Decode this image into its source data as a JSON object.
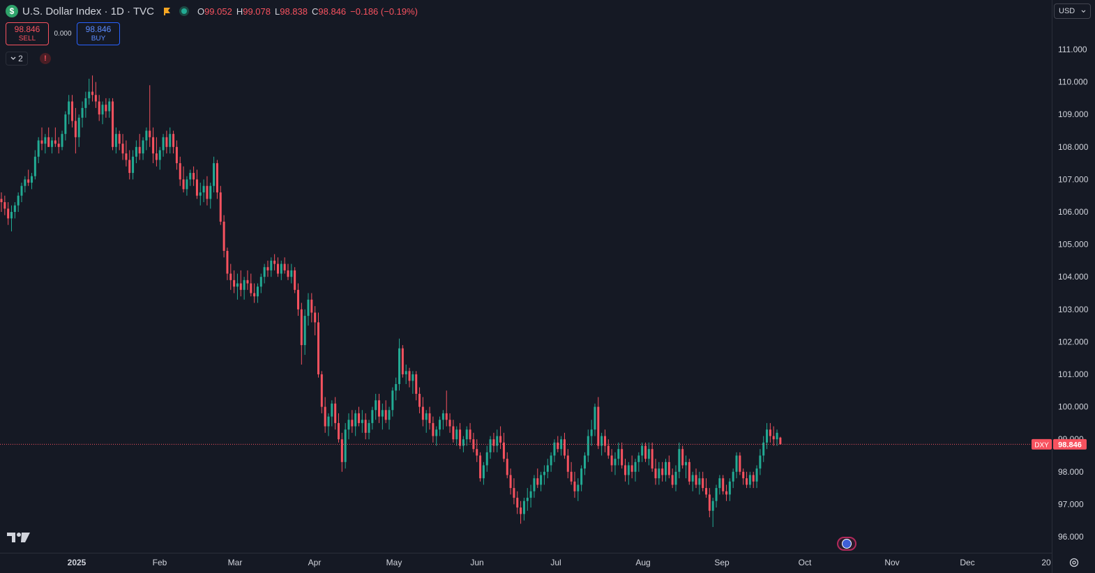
{
  "header": {
    "symbol_icon": "$",
    "title": "U.S. Dollar Index · 1D · TVC",
    "ohlc": [
      {
        "label": "O",
        "value": "99.052"
      },
      {
        "label": "H",
        "value": "99.078"
      },
      {
        "label": "L",
        "value": "98.838"
      },
      {
        "label": "C",
        "value": "98.846"
      }
    ],
    "change": "−0.186 (−0.19%)"
  },
  "trade": {
    "sell_price": "98.846",
    "sell_label": "SELL",
    "spread": "0.000",
    "buy_price": "98.846",
    "buy_label": "BUY"
  },
  "indicators_count": "2",
  "warning_symbol": "!",
  "currency": "USD",
  "price_tag": {
    "symbol": "DXY",
    "price": "98.846"
  },
  "colors": {
    "background": "#151924",
    "up": "#22ab94",
    "down": "#f7525f",
    "grid_text": "#d1d4dc",
    "line": "#f7525f"
  },
  "icons": [
    "dollar-icon",
    "flag-icon",
    "live-dot-icon",
    "chevron-down-icon",
    "warning-icon",
    "tradingview-logo",
    "us-flag-event-icon",
    "settings-icon"
  ],
  "chart_data": {
    "type": "candlestick",
    "title": "U.S. Dollar Index · 1D · TVC",
    "ylim": [
      95.5,
      111.5
    ],
    "y_ticks": [
      "111.000",
      "110.000",
      "109.000",
      "108.000",
      "107.000",
      "106.000",
      "105.000",
      "104.000",
      "103.000",
      "102.000",
      "101.000",
      "100.000",
      "99.000",
      "98.000",
      "97.000",
      "96.000"
    ],
    "x_tick_labels": [
      "2025",
      "Feb",
      "Mar",
      "Apr",
      "May",
      "Jun",
      "Jul",
      "Aug",
      "Sep",
      "Oct",
      "Nov",
      "Dec",
      "20"
    ],
    "last_price": 98.846,
    "ohlc": [
      [
        106.4,
        106.6,
        106.0,
        106.3
      ],
      [
        106.3,
        106.5,
        105.9,
        106.1
      ],
      [
        106.1,
        106.3,
        105.6,
        105.8
      ],
      [
        105.8,
        106.2,
        105.4,
        106.0
      ],
      [
        106.0,
        106.3,
        105.8,
        106.2
      ],
      [
        106.2,
        106.6,
        106.0,
        106.5
      ],
      [
        106.5,
        106.9,
        106.3,
        106.8
      ],
      [
        106.8,
        107.1,
        106.6,
        107.0
      ],
      [
        107.0,
        107.3,
        106.8,
        106.9
      ],
      [
        106.9,
        107.2,
        106.7,
        107.1
      ],
      [
        107.1,
        107.9,
        107.0,
        107.7
      ],
      [
        107.7,
        108.3,
        107.5,
        108.2
      ],
      [
        108.2,
        108.6,
        107.9,
        108.1
      ],
      [
        108.1,
        108.4,
        107.8,
        108.3
      ],
      [
        108.3,
        108.6,
        108.0,
        108.0
      ],
      [
        108.0,
        108.3,
        107.8,
        108.2
      ],
      [
        108.2,
        108.6,
        108.0,
        108.1
      ],
      [
        108.1,
        108.3,
        107.8,
        108.0
      ],
      [
        108.0,
        108.5,
        107.9,
        108.4
      ],
      [
        108.4,
        109.1,
        108.2,
        109.0
      ],
      [
        109.0,
        109.6,
        108.7,
        109.4
      ],
      [
        109.4,
        109.6,
        108.6,
        108.8
      ],
      [
        108.8,
        109.2,
        107.8,
        108.3
      ],
      [
        108.3,
        109.0,
        108.0,
        108.9
      ],
      [
        108.9,
        109.4,
        108.6,
        109.2
      ],
      [
        109.2,
        109.7,
        108.9,
        109.5
      ],
      [
        109.5,
        110.1,
        109.3,
        109.7
      ],
      [
        109.7,
        110.2,
        109.4,
        109.6
      ],
      [
        109.6,
        110.0,
        109.2,
        109.4
      ],
      [
        109.4,
        109.6,
        108.8,
        109.0
      ],
      [
        109.0,
        109.4,
        108.7,
        109.3
      ],
      [
        109.3,
        109.5,
        108.9,
        109.1
      ],
      [
        109.1,
        109.5,
        108.9,
        109.4
      ],
      [
        109.4,
        109.5,
        107.9,
        108.0
      ],
      [
        108.0,
        108.6,
        107.8,
        108.4
      ],
      [
        108.4,
        108.5,
        107.9,
        108.1
      ],
      [
        108.1,
        108.4,
        107.6,
        107.8
      ],
      [
        107.8,
        108.2,
        107.4,
        107.6
      ],
      [
        107.6,
        107.9,
        107.0,
        107.2
      ],
      [
        107.2,
        107.9,
        107.0,
        107.7
      ],
      [
        107.7,
        108.2,
        107.5,
        108.0
      ],
      [
        108.0,
        108.4,
        107.6,
        107.8
      ],
      [
        107.8,
        108.3,
        107.6,
        108.2
      ],
      [
        108.2,
        108.6,
        107.9,
        108.5
      ],
      [
        108.5,
        109.9,
        108.0,
        108.3
      ],
      [
        108.3,
        108.6,
        107.5,
        107.8
      ],
      [
        107.8,
        108.3,
        107.4,
        107.6
      ],
      [
        107.6,
        108.0,
        107.3,
        107.9
      ],
      [
        107.9,
        108.4,
        107.7,
        108.3
      ],
      [
        108.3,
        108.5,
        107.8,
        108.0
      ],
      [
        108.0,
        108.6,
        107.8,
        108.4
      ],
      [
        108.4,
        108.5,
        107.8,
        108.0
      ],
      [
        108.0,
        108.2,
        107.3,
        107.5
      ],
      [
        107.5,
        107.7,
        106.8,
        107.0
      ],
      [
        107.0,
        107.4,
        106.6,
        106.7
      ],
      [
        106.7,
        107.1,
        106.5,
        107.0
      ],
      [
        107.0,
        107.3,
        106.8,
        107.2
      ],
      [
        107.2,
        107.4,
        106.8,
        107.0
      ],
      [
        107.0,
        107.3,
        106.4,
        106.5
      ],
      [
        106.5,
        106.9,
        106.2,
        106.6
      ],
      [
        106.6,
        107.0,
        106.3,
        106.8
      ],
      [
        106.8,
        107.1,
        106.2,
        106.4
      ],
      [
        106.4,
        106.9,
        106.1,
        106.8
      ],
      [
        106.8,
        107.7,
        106.6,
        107.5
      ],
      [
        107.5,
        107.6,
        106.4,
        106.6
      ],
      [
        106.6,
        106.8,
        105.6,
        105.7
      ],
      [
        105.7,
        105.9,
        104.6,
        104.8
      ],
      [
        104.8,
        104.9,
        103.9,
        104.1
      ],
      [
        104.1,
        104.4,
        103.6,
        103.9
      ],
      [
        103.9,
        104.2,
        103.5,
        103.7
      ],
      [
        103.7,
        104.1,
        103.3,
        103.8
      ],
      [
        103.8,
        104.2,
        103.4,
        103.6
      ],
      [
        103.6,
        104.0,
        103.3,
        103.9
      ],
      [
        103.9,
        104.2,
        103.6,
        103.8
      ],
      [
        103.8,
        104.1,
        103.4,
        103.5
      ],
      [
        103.5,
        103.8,
        103.2,
        103.4
      ],
      [
        103.4,
        103.8,
        103.2,
        103.7
      ],
      [
        103.7,
        104.1,
        103.5,
        104.0
      ],
      [
        104.0,
        104.4,
        103.8,
        104.3
      ],
      [
        104.3,
        104.5,
        104.0,
        104.2
      ],
      [
        104.2,
        104.6,
        104.0,
        104.5
      ],
      [
        104.5,
        104.7,
        104.2,
        104.4
      ],
      [
        104.4,
        104.6,
        104.0,
        104.1
      ],
      [
        104.1,
        104.5,
        103.9,
        104.4
      ],
      [
        104.4,
        104.6,
        104.1,
        104.2
      ],
      [
        104.2,
        104.4,
        103.9,
        104.0
      ],
      [
        104.0,
        104.4,
        103.8,
        104.2
      ],
      [
        104.2,
        104.3,
        103.5,
        103.6
      ],
      [
        103.6,
        103.8,
        102.8,
        103.0
      ],
      [
        103.0,
        103.2,
        101.3,
        101.9
      ],
      [
        101.9,
        103.0,
        101.6,
        102.8
      ],
      [
        102.8,
        103.5,
        102.5,
        103.3
      ],
      [
        103.3,
        103.5,
        102.6,
        102.9
      ],
      [
        102.9,
        103.1,
        102.2,
        102.6
      ],
      [
        102.6,
        102.9,
        100.9,
        101.0
      ],
      [
        101.0,
        101.1,
        99.8,
        100.0
      ],
      [
        100.0,
        100.3,
        99.2,
        99.4
      ],
      [
        99.4,
        99.8,
        99.1,
        99.7
      ],
      [
        99.7,
        100.2,
        99.4,
        100.1
      ],
      [
        100.1,
        100.3,
        99.3,
        99.5
      ],
      [
        99.5,
        99.8,
        98.9,
        99.0
      ],
      [
        99.0,
        99.2,
        98.0,
        98.3
      ],
      [
        98.3,
        99.5,
        98.1,
        99.3
      ],
      [
        99.3,
        99.8,
        99.0,
        99.6
      ],
      [
        99.6,
        99.9,
        99.2,
        99.4
      ],
      [
        99.4,
        99.9,
        99.1,
        99.8
      ],
      [
        99.8,
        100.0,
        99.4,
        99.5
      ],
      [
        99.5,
        99.9,
        99.2,
        99.6
      ],
      [
        99.6,
        99.8,
        99.0,
        99.2
      ],
      [
        99.2,
        99.6,
        99.0,
        99.5
      ],
      [
        99.5,
        100.0,
        99.3,
        99.9
      ],
      [
        99.9,
        100.4,
        99.6,
        100.2
      ],
      [
        100.2,
        100.4,
        99.5,
        99.7
      ],
      [
        99.7,
        100.1,
        99.3,
        99.9
      ],
      [
        99.9,
        100.2,
        99.5,
        99.6
      ],
      [
        99.6,
        100.0,
        99.3,
        99.9
      ],
      [
        99.9,
        100.6,
        99.7,
        100.5
      ],
      [
        100.5,
        100.9,
        100.2,
        100.7
      ],
      [
        100.7,
        102.1,
        100.5,
        101.8
      ],
      [
        101.8,
        101.9,
        100.9,
        101.0
      ],
      [
        101.0,
        101.3,
        100.7,
        101.1
      ],
      [
        101.1,
        101.2,
        100.6,
        100.8
      ],
      [
        100.8,
        101.1,
        100.4,
        101.0
      ],
      [
        101.0,
        101.1,
        100.2,
        100.4
      ],
      [
        100.4,
        100.6,
        99.8,
        100.0
      ],
      [
        100.0,
        100.3,
        99.4,
        99.6
      ],
      [
        99.6,
        99.9,
        99.2,
        99.8
      ],
      [
        99.8,
        100.0,
        99.3,
        99.5
      ],
      [
        99.5,
        99.7,
        98.9,
        99.1
      ],
      [
        99.1,
        99.4,
        98.8,
        99.3
      ],
      [
        99.3,
        99.7,
        99.1,
        99.6
      ],
      [
        99.6,
        99.9,
        99.3,
        99.8
      ],
      [
        99.8,
        100.5,
        99.4,
        99.6
      ],
      [
        99.6,
        99.8,
        99.2,
        99.4
      ],
      [
        99.4,
        99.6,
        98.9,
        99.0
      ],
      [
        99.0,
        99.4,
        98.8,
        99.3
      ],
      [
        99.3,
        99.5,
        98.7,
        98.8
      ],
      [
        98.8,
        99.1,
        98.6,
        99.0
      ],
      [
        99.0,
        99.4,
        98.8,
        99.3
      ],
      [
        99.3,
        99.5,
        98.9,
        99.0
      ],
      [
        99.0,
        99.2,
        98.6,
        98.7
      ],
      [
        98.7,
        99.0,
        98.3,
        98.5
      ],
      [
        98.5,
        98.6,
        97.7,
        97.8
      ],
      [
        97.8,
        98.3,
        97.6,
        98.2
      ],
      [
        98.2,
        98.8,
        98.0,
        98.6
      ],
      [
        98.6,
        99.1,
        98.4,
        99.0
      ],
      [
        99.0,
        99.2,
        98.6,
        98.8
      ],
      [
        98.8,
        99.3,
        98.6,
        99.1
      ],
      [
        99.1,
        99.4,
        98.7,
        98.9
      ],
      [
        98.9,
        99.2,
        98.3,
        98.4
      ],
      [
        98.4,
        98.6,
        97.8,
        97.9
      ],
      [
        97.9,
        98.1,
        97.3,
        97.5
      ],
      [
        97.5,
        97.8,
        97.0,
        97.2
      ],
      [
        97.2,
        97.4,
        96.7,
        96.9
      ],
      [
        96.9,
        97.1,
        96.4,
        96.7
      ],
      [
        96.7,
        97.2,
        96.5,
        97.1
      ],
      [
        97.1,
        97.5,
        96.8,
        97.2
      ],
      [
        97.2,
        97.6,
        96.9,
        97.4
      ],
      [
        97.4,
        97.9,
        97.2,
        97.8
      ],
      [
        97.8,
        98.1,
        97.5,
        97.6
      ],
      [
        97.6,
        98.0,
        97.4,
        97.9
      ],
      [
        97.9,
        98.2,
        97.6,
        98.0
      ],
      [
        98.0,
        98.4,
        97.8,
        98.2
      ],
      [
        98.2,
        98.6,
        98.0,
        98.5
      ],
      [
        98.5,
        99.0,
        98.3,
        98.9
      ],
      [
        98.9,
        99.1,
        98.6,
        98.7
      ],
      [
        98.7,
        99.1,
        98.5,
        99.0
      ],
      [
        99.0,
        99.2,
        98.4,
        98.5
      ],
      [
        98.5,
        98.7,
        97.8,
        98.0
      ],
      [
        98.0,
        98.3,
        97.6,
        97.7
      ],
      [
        97.7,
        98.0,
        97.2,
        97.4
      ],
      [
        97.4,
        97.8,
        97.1,
        97.6
      ],
      [
        97.6,
        98.2,
        97.4,
        98.1
      ],
      [
        98.1,
        98.6,
        97.9,
        98.5
      ],
      [
        98.5,
        99.3,
        98.3,
        99.1
      ],
      [
        99.1,
        99.6,
        98.8,
        99.3
      ],
      [
        99.3,
        100.1,
        99.1,
        100.0
      ],
      [
        100.0,
        100.3,
        98.7,
        98.8
      ],
      [
        98.8,
        99.2,
        98.5,
        99.1
      ],
      [
        99.1,
        99.3,
        98.6,
        98.8
      ],
      [
        98.8,
        99.0,
        98.4,
        98.5
      ],
      [
        98.5,
        98.7,
        98.0,
        98.2
      ],
      [
        98.2,
        98.6,
        97.9,
        98.4
      ],
      [
        98.4,
        98.9,
        98.2,
        98.7
      ],
      [
        98.7,
        98.9,
        98.1,
        98.2
      ],
      [
        98.2,
        98.4,
        97.7,
        97.9
      ],
      [
        97.9,
        98.3,
        97.6,
        98.2
      ],
      [
        98.2,
        98.5,
        97.8,
        98.0
      ],
      [
        98.0,
        98.4,
        97.7,
        98.3
      ],
      [
        98.3,
        98.6,
        98.0,
        98.5
      ],
      [
        98.5,
        98.9,
        98.3,
        98.8
      ],
      [
        98.8,
        98.9,
        98.3,
        98.4
      ],
      [
        98.4,
        98.9,
        98.2,
        98.7
      ],
      [
        98.7,
        98.9,
        98.0,
        98.1
      ],
      [
        98.1,
        98.4,
        97.6,
        97.8
      ],
      [
        97.8,
        98.3,
        97.6,
        98.1
      ],
      [
        98.1,
        98.3,
        97.7,
        97.9
      ],
      [
        97.9,
        98.4,
        97.7,
        98.3
      ],
      [
        98.3,
        98.5,
        97.8,
        97.9
      ],
      [
        97.9,
        98.1,
        97.5,
        97.6
      ],
      [
        97.6,
        98.2,
        97.4,
        98.0
      ],
      [
        98.0,
        98.9,
        97.8,
        98.7
      ],
      [
        98.7,
        98.8,
        98.1,
        98.2
      ],
      [
        98.2,
        98.5,
        97.8,
        98.3
      ],
      [
        98.3,
        98.4,
        97.6,
        97.7
      ],
      [
        97.7,
        98.0,
        97.4,
        97.9
      ],
      [
        97.9,
        98.1,
        97.5,
        97.6
      ],
      [
        97.6,
        98.0,
        97.3,
        97.8
      ],
      [
        97.8,
        98.0,
        97.4,
        97.5
      ],
      [
        97.5,
        97.8,
        97.2,
        97.3
      ],
      [
        97.3,
        97.5,
        96.6,
        96.8
      ],
      [
        96.8,
        97.2,
        96.3,
        97.1
      ],
      [
        97.1,
        97.6,
        96.9,
        97.5
      ],
      [
        97.5,
        97.9,
        97.3,
        97.8
      ],
      [
        97.8,
        97.9,
        97.3,
        97.4
      ],
      [
        97.4,
        97.6,
        97.1,
        97.3
      ],
      [
        97.3,
        97.8,
        97.1,
        97.7
      ],
      [
        97.7,
        98.1,
        97.5,
        98.0
      ],
      [
        98.0,
        98.6,
        97.8,
        98.5
      ],
      [
        98.5,
        98.6,
        97.9,
        98.0
      ],
      [
        98.0,
        98.1,
        97.6,
        97.8
      ],
      [
        97.8,
        98.0,
        97.5,
        97.6
      ],
      [
        97.6,
        98.0,
        97.5,
        97.9
      ],
      [
        97.9,
        98.0,
        97.5,
        97.7
      ],
      [
        97.7,
        98.2,
        97.5,
        98.1
      ],
      [
        98.1,
        98.7,
        97.9,
        98.5
      ],
      [
        98.5,
        99.1,
        98.3,
        98.9
      ],
      [
        98.9,
        99.5,
        98.7,
        99.3
      ],
      [
        99.3,
        99.5,
        98.9,
        99.1
      ],
      [
        99.1,
        99.4,
        98.8,
        99.0
      ],
      [
        99.0,
        99.3,
        98.8,
        99.2
      ],
      [
        99.052,
        99.078,
        98.838,
        98.846
      ]
    ]
  }
}
